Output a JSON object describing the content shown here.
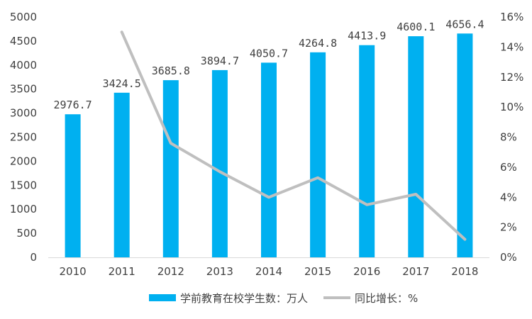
{
  "chart_data": {
    "type": "bar",
    "categories": [
      "2010",
      "2011",
      "2012",
      "2013",
      "2014",
      "2015",
      "2016",
      "2017",
      "2018"
    ],
    "series": [
      {
        "name": "学前教育在校学生数：万人",
        "type": "bar",
        "axis": "left",
        "color": "#00B0F0",
        "values": [
          2976.7,
          3424.5,
          3685.8,
          3894.7,
          4050.7,
          4264.8,
          4413.9,
          4600.1,
          4656.4
        ],
        "labels": [
          "2976.7",
          "3424.5",
          "3685.8",
          "3894.7",
          "4050.7",
          "4264.8",
          "4413.9",
          "4600.1",
          "4656.4"
        ]
      },
      {
        "name": "同比增长：%",
        "type": "line",
        "axis": "right",
        "color": "#BFBFBF",
        "values": [
          null,
          15.0,
          7.6,
          5.7,
          4.0,
          5.3,
          3.5,
          4.2,
          1.2
        ]
      }
    ],
    "y_left": {
      "ylim": [
        0,
        5000
      ],
      "ticks": [
        "0",
        "500",
        "1000",
        "1500",
        "2000",
        "2500",
        "3000",
        "3500",
        "4000",
        "4500",
        "5000"
      ]
    },
    "y_right": {
      "ylim": [
        0,
        16
      ],
      "ticks": [
        "0%",
        "2%",
        "4%",
        "6%",
        "8%",
        "10%",
        "12%",
        "14%",
        "16%"
      ]
    },
    "grid": false,
    "legend_position": "bottom"
  }
}
